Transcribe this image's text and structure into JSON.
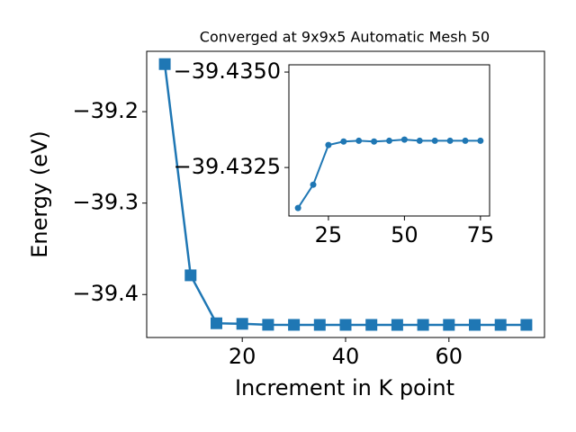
{
  "chart_data": [
    {
      "type": "line",
      "title": "Converged at 9x9x5 Automatic Mesh 50",
      "x_label": "Increment in K point",
      "y_label": "Energy (eV)",
      "x": [
        5,
        10,
        15,
        20,
        25,
        30,
        35,
        40,
        45,
        50,
        55,
        60,
        65,
        70,
        75
      ],
      "series": [
        {
          "color": "#1f77b4",
          "marker": "square",
          "values": [
            -39.148,
            -39.379,
            -39.43144,
            -39.43205,
            -39.43309,
            -39.43318,
            -39.4332,
            -39.43318,
            -39.4332,
            -39.43323,
            -39.4332,
            -39.4332,
            -39.4332,
            -39.4332,
            -39.4332
          ]
        }
      ],
      "xlim": [
        1.5,
        78.5
      ],
      "ylim": [
        -39.447,
        -39.134
      ],
      "xticks": [
        20,
        40,
        60
      ],
      "yticks": [
        {
          "value": -39.2,
          "label": "−39.2"
        },
        {
          "value": -39.3,
          "label": "−39.3"
        },
        {
          "value": -39.4,
          "label": "−39.4"
        }
      ]
    },
    {
      "type": "line",
      "x": [
        15,
        20,
        25,
        30,
        35,
        40,
        45,
        50,
        55,
        60,
        65,
        70,
        75
      ],
      "series": [
        {
          "color": "#1f77b4",
          "marker": "circle",
          "values": [
            -39.43144,
            -39.43205,
            -39.43309,
            -39.43318,
            -39.4332,
            -39.43318,
            -39.4332,
            -39.43323,
            -39.4332,
            -39.4332,
            -39.4332,
            -39.4332,
            -39.4332
          ]
        }
      ],
      "xlim": [
        12,
        78
      ],
      "ylim": [
        -39.43123,
        -39.43519
      ],
      "xticks": [
        25,
        50,
        75
      ],
      "yticks": [
        {
          "value": -39.435,
          "label": "−39.4350"
        },
        {
          "value": -39.4325,
          "label": "−39.4325"
        }
      ]
    }
  ]
}
